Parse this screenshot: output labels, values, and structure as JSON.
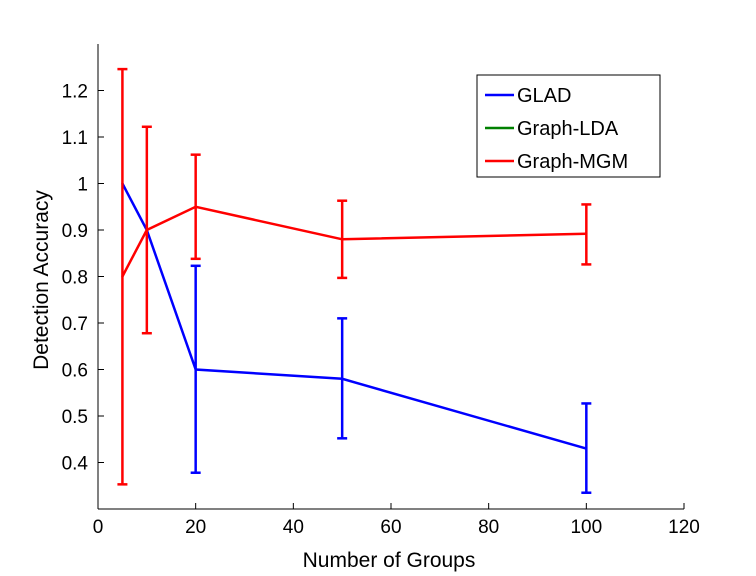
{
  "chart_data": {
    "type": "line",
    "xlabel": "Number of Groups",
    "ylabel": "Detection Accuracy",
    "xlim": [
      0,
      120
    ],
    "ylim": [
      0.3,
      1.3
    ],
    "x_ticks": [
      0,
      20,
      40,
      60,
      80,
      100,
      120
    ],
    "y_ticks": [
      0.4,
      0.5,
      0.6,
      0.7,
      0.8,
      0.9,
      1,
      1.1,
      1.2
    ],
    "y_tick_labels": [
      "0.4",
      "0.5",
      "0.6",
      "0.7",
      "0.8",
      "0.9",
      "1",
      "1.1",
      "1.2"
    ],
    "grid": false,
    "legend_position": "top-right",
    "series": [
      {
        "name": "GLAD",
        "color": "#0000ff",
        "x": [
          5,
          10,
          20,
          50,
          100
        ],
        "y": [
          1.0,
          0.9,
          0.6,
          0.58,
          0.43
        ],
        "err_low": [
          1.0,
          0.9,
          0.378,
          0.452,
          0.335
        ],
        "err_high": [
          1.0,
          0.9,
          0.823,
          0.71,
          0.527
        ]
      },
      {
        "name": "Graph-LDA",
        "color": "#008000",
        "x": [],
        "y": [],
        "err_low": [],
        "err_high": []
      },
      {
        "name": "Graph-MGM",
        "color": "#ff0000",
        "x": [
          5,
          10,
          20,
          50,
          100
        ],
        "y": [
          0.8,
          0.9,
          0.95,
          0.88,
          0.892
        ],
        "err_low": [
          0.353,
          0.678,
          0.838,
          0.797,
          0.826
        ],
        "err_high": [
          1.246,
          1.122,
          1.062,
          0.963,
          0.955
        ]
      }
    ]
  }
}
